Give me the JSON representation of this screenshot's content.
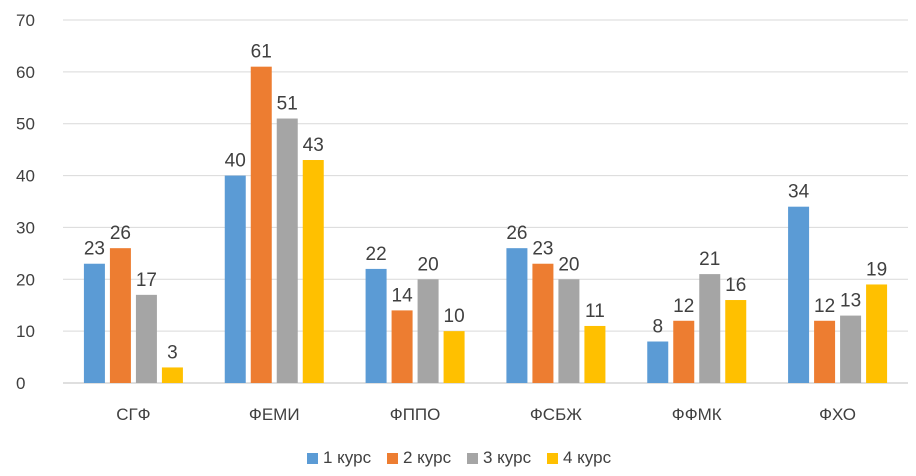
{
  "chart_data": {
    "type": "bar",
    "categories": [
      "СГФ",
      "ФЕМИ",
      "ФППО",
      "ФСБЖ",
      "ФФМК",
      "ФХО"
    ],
    "series": [
      {
        "name": "1 курс",
        "color": "#5B9BD5",
        "values": [
          23,
          40,
          22,
          26,
          8,
          34
        ]
      },
      {
        "name": "2 курс",
        "color": "#ED7D31",
        "values": [
          26,
          61,
          14,
          23,
          12,
          12
        ]
      },
      {
        "name": "3 курс",
        "color": "#A5A5A5",
        "values": [
          17,
          51,
          20,
          20,
          21,
          13
        ]
      },
      {
        "name": "4 курс",
        "color": "#FFC000",
        "values": [
          3,
          43,
          10,
          11,
          16,
          19
        ]
      }
    ],
    "ylim": [
      0,
      70
    ],
    "yticks": [
      0,
      10,
      20,
      30,
      40,
      50,
      60,
      70
    ],
    "grid": true,
    "legend": "bottom",
    "data_labels": true
  }
}
